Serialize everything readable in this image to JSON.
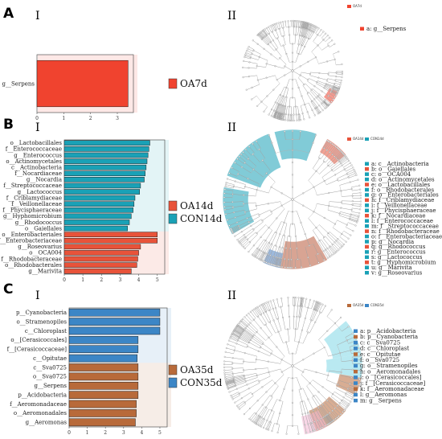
{
  "colors": {
    "OA7d": "#f0432f",
    "OA14d": "#e8533a",
    "CON14d": "#1aa1b6",
    "OA35d": "#b86a3a",
    "CON35d": "#3c86c6",
    "tree_line": "#9a9a9a"
  },
  "panels": [
    {
      "letter": "A",
      "bar_roman": "I",
      "tree_roman": "II",
      "legend": [
        {
          "name": "OA7d",
          "color": "#f0432f"
        }
      ],
      "tree_legend_header": [
        "OA7d"
      ],
      "tree_legend": [
        "a: g__Serpens"
      ],
      "chart": {
        "type": "bar",
        "orientation": "horizontal",
        "categories": [
          "g__Serpens"
        ],
        "values": [
          3.4
        ],
        "groups": [
          "OA7d"
        ],
        "xlim": [
          0,
          3.6
        ],
        "xticks": [
          0,
          1,
          2,
          3
        ]
      }
    },
    {
      "letter": "B",
      "bar_roman": "I",
      "tree_roman": "II",
      "legend": [
        {
          "name": "OA14d",
          "color": "#e8533a"
        },
        {
          "name": "CON14d",
          "color": "#1aa1b6"
        }
      ],
      "tree_legend_header": [
        "OA14d",
        "CON14d"
      ],
      "tree_legend": [
        "a: c__Actinobacteria",
        "b: o__Gaiellales",
        "c: o__OCA004",
        "d: o__Actinomycetales",
        "e: o__Lactobacillales",
        "f: o__Rhodobacterales",
        "g: o__Enterobacteriales",
        "h: f__Criblamydiaceae",
        "i: f__Veillonellaceae",
        "j: f__Phycisphaeraceae",
        "k: f__Nocardiaceae",
        "l: f__Enterococcaceae",
        "m: f__Streptococcaceae",
        "n: f__Rhodobacteraceae",
        "o: f__Enterobacteriaceae",
        "p: g__Nocardia",
        "q: g__Rhodococcus",
        "r: g__Enterococcus",
        "s: g__Lactococcus",
        "t: g__Hyphomicrobium",
        "u: g__Marivita",
        "v: g__Roseovarius"
      ],
      "chart": {
        "type": "bar",
        "orientation": "horizontal",
        "categories": [
          "o__Lactobacillales",
          "f__Enterococcaceae",
          "g__Enterococcus",
          "o__Actinomycetales",
          "c__Actinobacteria",
          "f__Nocardiaceae",
          "g__Nocardia",
          "f__Streptococcaceae",
          "g__Lactococcus",
          "f__Criblamydiaceae",
          "f__Veillonellaceae",
          "f__Phycisphaeraceae",
          "g__Hyphomicrobium",
          "g__Rhodococcus",
          "o__Gaiellales",
          "o__Enterobacteriales",
          "f__Enterobacteriaceae",
          "g__Roseovarius",
          "o__OCA004",
          "f__Rhodobacteraceae",
          "o__Rhodobacterales",
          "g__Marivita"
        ],
        "values": [
          4.6,
          4.55,
          4.5,
          4.45,
          4.4,
          4.35,
          4.3,
          4.1,
          4.05,
          3.8,
          3.75,
          3.7,
          3.6,
          3.5,
          3.4,
          5.0,
          5.0,
          4.1,
          4.0,
          3.95,
          3.9,
          3.6
        ],
        "groups": [
          "CON14d",
          "CON14d",
          "CON14d",
          "CON14d",
          "CON14d",
          "CON14d",
          "CON14d",
          "CON14d",
          "CON14d",
          "CON14d",
          "CON14d",
          "CON14d",
          "CON14d",
          "CON14d",
          "CON14d",
          "OA14d",
          "OA14d",
          "OA14d",
          "OA14d",
          "OA14d",
          "OA14d",
          "OA14d"
        ],
        "xlim": [
          0,
          5.4
        ],
        "xticks": [
          0,
          1,
          2,
          3,
          4,
          5
        ]
      }
    },
    {
      "letter": "C",
      "bar_roman": "I",
      "tree_roman": "II",
      "legend": [
        {
          "name": "OA35d",
          "color": "#b86a3a"
        },
        {
          "name": "CON35d",
          "color": "#3c86c6"
        }
      ],
      "tree_legend_header": [
        "OA35d",
        "CON35d"
      ],
      "tree_legend": [
        "a: p__Acidobacteria",
        "b: p__Cyanobacteria",
        "c: c__Sva0725",
        "d: c__Chloroplast",
        "e: c__Opitutae",
        "f: o__Sva0725",
        "g: o__Stramenopiles",
        "h: o__Aeromonadales",
        "i: o__[Cerasicoccales]",
        "j: f__[Cerasicoccaceae]",
        "k: f__Aeromonadaceae",
        "l: g__Aeromonas",
        "m: g__Serpens"
      ],
      "chart": {
        "type": "bar",
        "orientation": "horizontal",
        "categories": [
          "p__Cyanobacteria",
          "o__Stramenopiles",
          "c__Chloroplast",
          "o__[Cerasicoccales]",
          "f__[Cerasicoccaceae]",
          "c__Opitutae",
          "c__Sva0725",
          "o__Sva0725",
          "g__Serpens",
          "p__Acidobacteria",
          "f__Aeromonadaceae",
          "o__Aeromonadales",
          "g__Aeromonas"
        ],
        "values": [
          5.0,
          5.0,
          5.0,
          3.8,
          3.8,
          3.75,
          3.8,
          3.8,
          3.8,
          3.8,
          3.7,
          3.7,
          3.65
        ],
        "groups": [
          "CON35d",
          "CON35d",
          "CON35d",
          "CON35d",
          "CON35d",
          "CON35d",
          "OA35d",
          "OA35d",
          "OA35d",
          "OA35d",
          "OA35d",
          "OA35d",
          "OA35d"
        ],
        "xlim": [
          0,
          5.4
        ],
        "xticks": [
          0,
          1,
          2,
          3,
          4,
          5
        ]
      }
    }
  ]
}
